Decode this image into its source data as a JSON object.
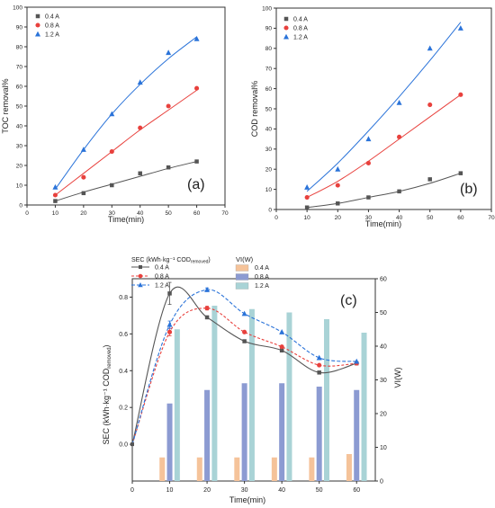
{
  "colors": {
    "s04": "#555555",
    "s08": "#e8413d",
    "s12": "#2a73d9",
    "bar04": "#f5c39a",
    "bar08": "#8c9bd2",
    "bar12": "#a9d3d6"
  },
  "chart_data": [
    {
      "panel_label": "(a)",
      "type": "scatter",
      "xlabel": "Time(min)",
      "ylabel": "TOC removal%",
      "xlim": [
        0,
        70
      ],
      "ylim": [
        0,
        100
      ],
      "xticks": [
        0,
        10,
        20,
        30,
        40,
        50,
        60,
        70
      ],
      "yticks": [
        0,
        10,
        20,
        30,
        40,
        50,
        60,
        70,
        80,
        90,
        100
      ],
      "legend_position": "top-left",
      "series": [
        {
          "name": "0.4 A",
          "marker": "square",
          "x": [
            10,
            20,
            30,
            40,
            50,
            60
          ],
          "y": [
            2,
            6,
            10,
            16,
            19,
            22
          ],
          "fit": [
            2,
            6.5,
            10.5,
            14.5,
            18.5,
            22
          ]
        },
        {
          "name": "0.8 A",
          "marker": "circle",
          "x": [
            10,
            20,
            30,
            40,
            50,
            60
          ],
          "y": [
            5,
            14,
            27,
            39,
            50,
            59
          ],
          "fit": [
            5,
            16,
            27,
            38,
            48,
            58
          ]
        },
        {
          "name": "1.2 A",
          "marker": "triangle",
          "x": [
            10,
            20,
            30,
            40,
            50,
            60
          ],
          "y": [
            9,
            28,
            46,
            62,
            77,
            84
          ],
          "fit": [
            8,
            28,
            46,
            61,
            74,
            85
          ]
        }
      ]
    },
    {
      "panel_label": "(b)",
      "type": "scatter",
      "xlabel": "Time(min)",
      "ylabel": "COD removal%",
      "xlim": [
        0,
        70
      ],
      "ylim": [
        0,
        100
      ],
      "xticks": [
        0,
        10,
        20,
        30,
        40,
        50,
        60,
        70
      ],
      "yticks": [
        0,
        10,
        20,
        30,
        40,
        50,
        60,
        70,
        80,
        90,
        100
      ],
      "legend_position": "top-left",
      "series": [
        {
          "name": "0.4 A",
          "marker": "square",
          "x": [
            10,
            20,
            30,
            40,
            50,
            60
          ],
          "y": [
            1,
            3,
            6,
            9,
            15,
            18
          ],
          "fit": [
            1,
            3,
            6,
            9,
            13,
            18
          ]
        },
        {
          "name": "0.8 A",
          "marker": "circle",
          "x": [
            10,
            20,
            30,
            40,
            50,
            60
          ],
          "y": [
            6,
            12,
            23,
            36,
            52,
            57
          ],
          "fit": [
            6,
            14,
            24,
            35,
            46,
            57
          ]
        },
        {
          "name": "1.2 A",
          "marker": "triangle",
          "x": [
            10,
            20,
            30,
            40,
            50,
            60
          ],
          "y": [
            11,
            20,
            35,
            53,
            80,
            90
          ],
          "fit": [
            9,
            23,
            39,
            56,
            74,
            93
          ]
        }
      ]
    },
    {
      "panel_label": "(c)",
      "type": "bar",
      "xlabel": "Time(min)",
      "ylabel": "SEC (kWh·kg⁻¹ COD",
      "ylabel_sub": "removed",
      "ylabel_close": ")",
      "y2label": "VI(W)",
      "xlim": [
        0,
        65
      ],
      "ylim": [
        -0.2,
        0.9
      ],
      "y2lim": [
        0,
        60
      ],
      "xticks": [
        0,
        10,
        20,
        30,
        40,
        50,
        60
      ],
      "yticks": [
        0.0,
        0.2,
        0.4,
        0.6,
        0.8
      ],
      "ytick_labels": [
        "0.0",
        "0.2",
        "0.4",
        "0.6",
        "0.8"
      ],
      "y2ticks": [
        0,
        10,
        20,
        30,
        40,
        50,
        60
      ],
      "legend_sec_title": "SEC (kWh·kg⁻¹ COD",
      "legend_sec_title_sub": "removed",
      "legend_sec_title_close": ")",
      "legend_vi_title": "VI(W)",
      "categories": [
        10,
        20,
        30,
        40,
        50,
        60
      ],
      "bars": [
        {
          "name": "0.4 A",
          "values": [
            7,
            7,
            7,
            7,
            7,
            8
          ]
        },
        {
          "name": "0.8 A",
          "values": [
            23,
            27,
            29,
            29,
            28,
            27
          ]
        },
        {
          "name": "1.2 A",
          "values": [
            45,
            52,
            51,
            50,
            48,
            44
          ]
        }
      ],
      "lines": [
        {
          "name": "0.4 A",
          "marker": "square",
          "x": [
            10,
            20,
            30,
            40,
            50,
            60
          ],
          "y": [
            0.82,
            0.69,
            0.56,
            0.51,
            0.39,
            0.44
          ],
          "err": [
            0.06,
            0.0,
            0.0,
            0.0,
            0.0,
            0.0
          ]
        },
        {
          "name": "0.8 A",
          "marker": "circle",
          "x": [
            10,
            20,
            30,
            40,
            50,
            60
          ],
          "y": [
            0.61,
            0.74,
            0.61,
            0.53,
            0.43,
            0.44
          ],
          "err": [
            0.02,
            0.01,
            0.0,
            0.0,
            0.0,
            0.0
          ]
        },
        {
          "name": "1.2 A",
          "marker": "triangle",
          "x": [
            10,
            20,
            30,
            40,
            50,
            60
          ],
          "y": [
            0.65,
            0.84,
            0.71,
            0.61,
            0.47,
            0.45
          ],
          "err": [
            0.02,
            0.01,
            0.0,
            0.0,
            0.0,
            0.0
          ]
        }
      ],
      "origin_point": {
        "x": 0,
        "y": 0.0
      }
    }
  ]
}
